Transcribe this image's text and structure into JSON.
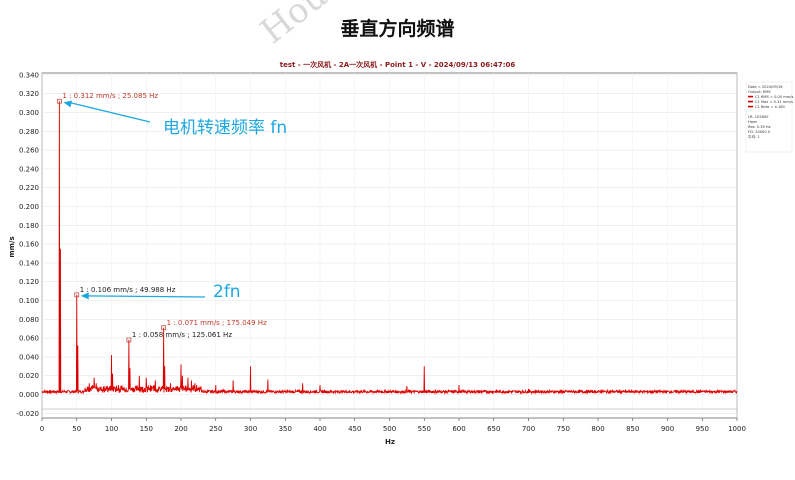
{
  "page_title": "垂直方向频谱",
  "watermark": "Hou",
  "chart_data": {
    "type": "line",
    "title": "test - 一次风机 - 2A一次风机 - Point 1 - V - 2024/09/13 06:47:06",
    "xlabel": "Hz",
    "ylabel": "mm/s",
    "xlim": [
      0,
      1000
    ],
    "ylim": [
      -0.025,
      0.342
    ],
    "x_ticks": [
      0,
      50,
      100,
      150,
      200,
      250,
      300,
      350,
      400,
      450,
      500,
      550,
      600,
      650,
      700,
      750,
      800,
      850,
      900,
      950,
      1000
    ],
    "y_ticks": [
      -0.02,
      0.0,
      0.02,
      0.04,
      0.06,
      0.08,
      0.1,
      0.12,
      0.14,
      0.16,
      0.18,
      0.2,
      0.22,
      0.24,
      0.26,
      0.28,
      0.3,
      0.32,
      0.34
    ],
    "y_tick_labels": [
      "-0.020",
      "0.000",
      "0.020",
      "0.040",
      "0.060",
      "0.080",
      "0.100",
      "0.120",
      "0.140",
      "0.160",
      "0.180",
      "0.200",
      "0.220",
      "0.240",
      "0.260",
      "0.280",
      "0.300",
      "0.320",
      "0.340"
    ],
    "grid": true,
    "line_color": "#dd0000",
    "peaks": [
      [
        25.085,
        0.312
      ],
      [
        26.5,
        0.155
      ],
      [
        49.988,
        0.106
      ],
      [
        51.5,
        0.052
      ],
      [
        68,
        0.012
      ],
      [
        75,
        0.018
      ],
      [
        78,
        0.012
      ],
      [
        100,
        0.042
      ],
      [
        101.5,
        0.022
      ],
      [
        110,
        0.01
      ],
      [
        125.061,
        0.058
      ],
      [
        126.5,
        0.028
      ],
      [
        140,
        0.02
      ],
      [
        150,
        0.018
      ],
      [
        163,
        0.015
      ],
      [
        175.049,
        0.071
      ],
      [
        176.5,
        0.03
      ],
      [
        185,
        0.012
      ],
      [
        200,
        0.032
      ],
      [
        202,
        0.02
      ],
      [
        210,
        0.018
      ],
      [
        215,
        0.015
      ],
      [
        220,
        0.012
      ],
      [
        250,
        0.01
      ],
      [
        275,
        0.015
      ],
      [
        300,
        0.03
      ],
      [
        325,
        0.016
      ],
      [
        375,
        0.012
      ],
      [
        400,
        0.01
      ],
      [
        525,
        0.009
      ],
      [
        550,
        0.03
      ],
      [
        600,
        0.01
      ],
      [
        700,
        0.006
      ],
      [
        805,
        0.005
      ],
      [
        950,
        0.004
      ]
    ],
    "annotations": [
      {
        "text": "1 : 0.312 mm/s ; 25.085 Hz",
        "x": 25.085,
        "y": 0.312,
        "color": "red"
      },
      {
        "text": "1 : 0.106 mm/s ; 49.988 Hz",
        "x": 49.988,
        "y": 0.106,
        "color": "black"
      },
      {
        "text": "1 : 0.058 mm/s ; 125.061 Hz",
        "x": 125.061,
        "y": 0.058,
        "color": "black"
      },
      {
        "text": "1 : 0.071 mm/s ; 175.049 Hz",
        "x": 175.049,
        "y": 0.071,
        "color": "red"
      }
    ],
    "callouts": [
      {
        "text": "电机转速频率 fn",
        "target_x": 25.085,
        "target_y": 0.312
      },
      {
        "text": "2fn",
        "target_x": 49.988,
        "target_y": 0.106
      }
    ],
    "legend": {
      "placement": "top-right",
      "lines": [
        "Date = 2024/09/16",
        "Output: RMS",
        "C1 RMS = 0.00 mm/s",
        "C1 Max = 0.31 mm/s",
        "C1 Beta = 4.160",
        "",
        "LR: 102800",
        "Hann",
        "Res: 0.39 Hz",
        "FD: 24000 0",
        "平均: 1"
      ]
    }
  }
}
